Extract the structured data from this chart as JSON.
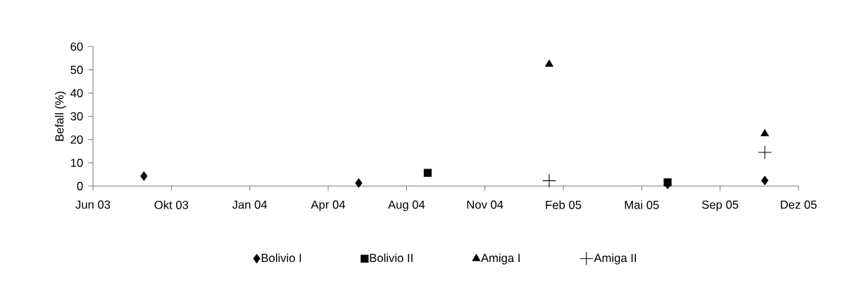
{
  "chart_data": {
    "type": "scatter",
    "ylabel": "Befall (%)",
    "xlim": [
      "2003-06-30",
      "2005-12-16"
    ],
    "xticks": [
      {
        "value": "2003-06-30",
        "label": "Jun 03"
      },
      {
        "value": "2003-10-08",
        "label": "Okt 03"
      },
      {
        "value": "2004-01-16",
        "label": "Jan 04"
      },
      {
        "value": "2004-04-25",
        "label": "Apr 04"
      },
      {
        "value": "2004-08-03",
        "label": "Aug 04"
      },
      {
        "value": "2004-11-11",
        "label": "Nov 04"
      },
      {
        "value": "2005-02-19",
        "label": "Feb 05"
      },
      {
        "value": "2005-05-30",
        "label": "Mai 05"
      },
      {
        "value": "2005-09-07",
        "label": "Sep 05"
      },
      {
        "value": "2005-12-16",
        "label": "Dez 05"
      }
    ],
    "ylim": [
      0,
      60
    ],
    "yticks": [
      0,
      10,
      20,
      30,
      40,
      50,
      60
    ],
    "legend": "bottom",
    "grid": false,
    "series": [
      {
        "name": "Bolivio I",
        "color": "#000000",
        "marker": "diamond",
        "x": [
          "2003-09-03",
          "2004-06-03",
          "2005-07-02",
          "2005-11-03"
        ],
        "values": [
          4.3,
          1.3,
          0.7,
          2.4
        ]
      },
      {
        "name": "Bolivio II",
        "color": "#000000",
        "marker": "square",
        "x": [
          "2004-08-30",
          "2005-07-02"
        ],
        "values": [
          5.7,
          1.6
        ]
      },
      {
        "name": "Amiga I",
        "color": "#000000",
        "marker": "triangle",
        "x": [
          "2005-02-01",
          "2005-11-03"
        ],
        "values": [
          52.4,
          22.5
        ]
      },
      {
        "name": "Amiga II",
        "color": "#000000",
        "marker": "cross",
        "x": [
          "2005-02-01",
          "2005-11-03"
        ],
        "values": [
          2.3,
          14.5
        ]
      }
    ]
  }
}
